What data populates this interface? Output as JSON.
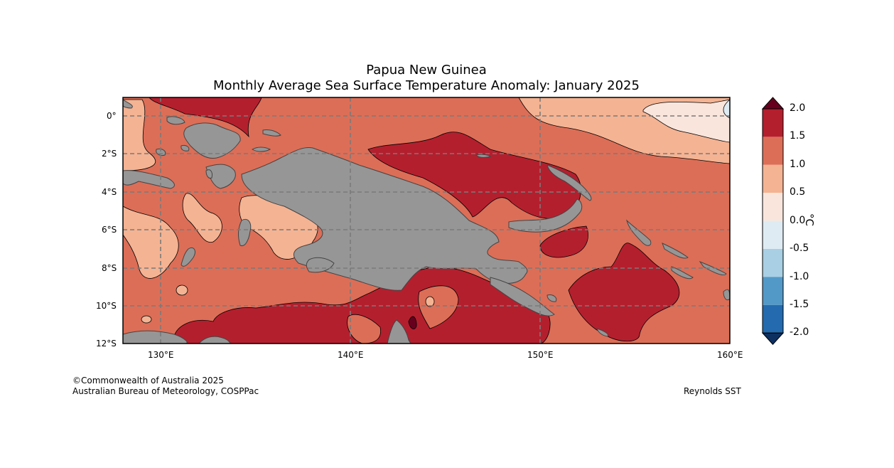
{
  "title": {
    "line1": "Papua New Guinea",
    "line2": "Monthly Average Sea Surface Temperature Anomaly: January 2025"
  },
  "axes": {
    "x_ticks": [
      "130°E",
      "140°E",
      "150°E",
      "160°E"
    ],
    "y_ticks": [
      "0°",
      "2°S",
      "4°S",
      "6°S",
      "8°S",
      "10°S",
      "12°S"
    ]
  },
  "map_extent": {
    "lon_min": 128,
    "lon_max": 160,
    "lat_min": -12,
    "lat_max": 1
  },
  "colorbar": {
    "unit": "°C",
    "tick_labels": [
      "2.0",
      "1.5",
      "1.0",
      "0.5",
      "0.0",
      "-0.5",
      "-1.0",
      "-1.5",
      "-2.0"
    ],
    "colors_top_to_bottom": [
      "#b41f2e",
      "#dc6e57",
      "#f4b393",
      "#f9e5dc",
      "#deebf3",
      "#a8cfe3",
      "#5299c8",
      "#236aaf"
    ],
    "over_color": "#67001f",
    "under_color": "#0d3060"
  },
  "legend_colors": {
    "land": "#969696",
    "anomaly_1_0_to_1_5": "#dc6e57",
    "anomaly_1_5_to_2_0": "#b41f2e",
    "anomaly_0_5_to_1_0": "#f4b393",
    "anomaly_0_0_to_0_5": "#f9e5dc",
    "anomaly_above_2_0": "#67001f"
  },
  "footer": {
    "copyright": "©Commonwealth of Australia 2025",
    "agency": "Australian Bureau of Meteorology, COSPPac",
    "source": "Reynolds SST"
  }
}
